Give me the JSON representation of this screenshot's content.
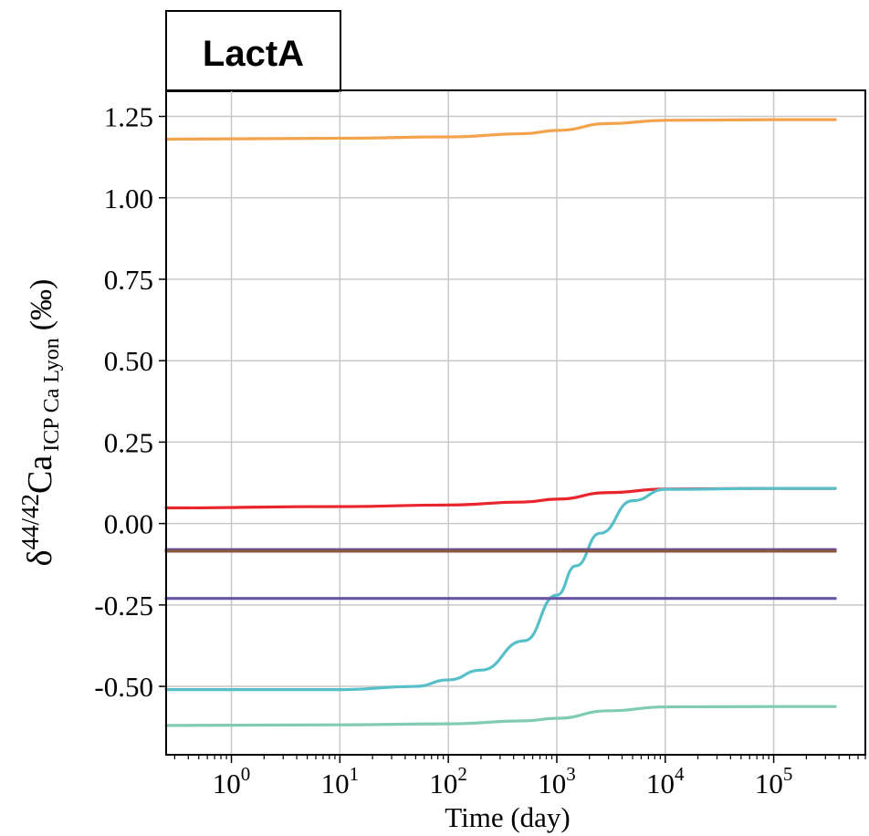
{
  "chart_data": {
    "type": "line",
    "title": "LactA",
    "xlabel": "Time (day)",
    "ylabel": {
      "prefix": "δ",
      "sup": "44/42",
      "main": "Ca",
      "sub": "ICP Ca Lyon",
      "unit": "(‰)"
    },
    "x_scale": "log",
    "xlim": [
      0.25,
      700000
    ],
    "ylim": [
      -0.71,
      1.33
    ],
    "grid": true,
    "x_ticks": [
      {
        "value": 1,
        "base": "10",
        "exp": "0"
      },
      {
        "value": 10,
        "base": "10",
        "exp": "1"
      },
      {
        "value": 100,
        "base": "10",
        "exp": "2"
      },
      {
        "value": 1000,
        "base": "10",
        "exp": "3"
      },
      {
        "value": 10000,
        "base": "10",
        "exp": "4"
      },
      {
        "value": 100000,
        "base": "10",
        "exp": "5"
      }
    ],
    "y_ticks": [
      {
        "value": 1.25,
        "label": "1.25"
      },
      {
        "value": 1.0,
        "label": "1.00"
      },
      {
        "value": 0.75,
        "label": "0.75"
      },
      {
        "value": 0.5,
        "label": "0.50"
      },
      {
        "value": 0.25,
        "label": "0.25"
      },
      {
        "value": 0.0,
        "label": "0.00"
      },
      {
        "value": -0.25,
        "label": "-0.25"
      },
      {
        "value": -0.5,
        "label": "-0.50"
      }
    ],
    "series": [
      {
        "color": "#f4a24b",
        "x": [
          0.25,
          10,
          100,
          500,
          1000,
          3000,
          10000,
          100000,
          370000
        ],
        "y": [
          1.18,
          1.183,
          1.187,
          1.197,
          1.207,
          1.228,
          1.238,
          1.24,
          1.24
        ]
      },
      {
        "color": "#e8242c",
        "x": [
          0.25,
          10,
          100,
          500,
          1000,
          3000,
          10000,
          100000,
          370000
        ],
        "y": [
          0.048,
          0.052,
          0.057,
          0.066,
          0.075,
          0.095,
          0.106,
          0.108,
          0.108
        ]
      },
      {
        "color": "#57bfc8",
        "x": [
          0.25,
          10,
          50,
          100,
          200,
          500,
          1000,
          1500,
          2500,
          5000,
          10000,
          100000,
          370000
        ],
        "y": [
          -0.51,
          -0.51,
          -0.5,
          -0.48,
          -0.45,
          -0.36,
          -0.22,
          -0.13,
          -0.03,
          0.07,
          0.105,
          0.108,
          0.108
        ]
      },
      {
        "color": "#6a4c9c",
        "x": [
          0.25,
          370000
        ],
        "y": [
          -0.08,
          -0.08
        ]
      },
      {
        "color": "#8b5a3c",
        "x": [
          0.25,
          370000
        ],
        "y": [
          -0.085,
          -0.085
        ]
      },
      {
        "color": "#6753a6",
        "x": [
          0.25,
          370000
        ],
        "y": [
          -0.23,
          -0.23
        ]
      },
      {
        "color": "#80cbb5",
        "x": [
          0.25,
          10,
          100,
          500,
          1000,
          3000,
          10000,
          100000,
          370000
        ],
        "y": [
          -0.62,
          -0.618,
          -0.615,
          -0.606,
          -0.598,
          -0.575,
          -0.563,
          -0.562,
          -0.562
        ]
      }
    ]
  }
}
